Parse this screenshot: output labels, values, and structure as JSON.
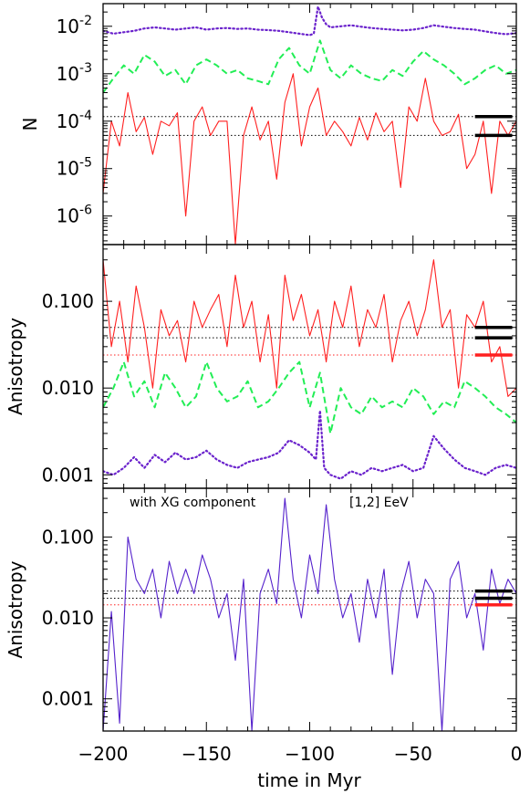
{
  "figure": {
    "xlabel": "time in Myr",
    "x_tick_labels": [
      "−200",
      "−150",
      "−100",
      "−50",
      "0"
    ]
  },
  "chart_data": [
    {
      "type": "line",
      "panel": "top",
      "ylabel": "N",
      "yscale": "log",
      "xlim": [
        -200,
        0
      ],
      "ylim": [
        2.5e-07,
        0.03
      ],
      "y_tick_labels": [
        {
          "mant": "10",
          "exp": "-2"
        },
        {
          "mant": "10",
          "exp": "-3"
        },
        {
          "mant": "10",
          "exp": "-4"
        },
        {
          "mant": "10",
          "exp": "-5"
        },
        {
          "mant": "10",
          "exp": "-6"
        }
      ],
      "series": [
        {
          "color": "#ff2020",
          "style": "solid",
          "x": [
            -200,
            -196,
            -192,
            -188,
            -184,
            -180,
            -176,
            -172,
            -168,
            -164,
            -160,
            -156,
            -152,
            -148,
            -144,
            -140,
            -136,
            -132,
            -128,
            -124,
            -120,
            -116,
            -112,
            -108,
            -104,
            -100,
            -96,
            -92,
            -88,
            -84,
            -80,
            -76,
            -72,
            -68,
            -64,
            -60,
            -56,
            -52,
            -48,
            -44,
            -40,
            -36,
            -32,
            -28,
            -24,
            -20,
            -16,
            -12,
            -8,
            -4,
            0
          ],
          "y": [
            3e-06,
            0.0001,
            3e-05,
            0.0004,
            6e-05,
            0.00012,
            2e-05,
            0.0001,
            8e-05,
            0.00015,
            1e-06,
            0.0001,
            0.0002,
            5e-05,
            0.0001,
            0.0001,
            2.5e-07,
            5e-05,
            0.0002,
            4e-05,
            0.0001,
            6e-06,
            0.00025,
            0.001,
            3e-05,
            0.0002,
            0.0005,
            5e-05,
            0.0001,
            6e-05,
            3e-05,
            0.00012,
            4e-05,
            0.00015,
            6e-05,
            0.0001,
            4e-06,
            0.0002,
            0.0001,
            0.0008,
            0.0001,
            5e-05,
            6e-05,
            0.00014,
            1e-05,
            2e-05,
            0.0001,
            3e-06,
            0.0001,
            5e-05,
            0.0001
          ]
        },
        {
          "color": "#22ee55",
          "style": "dashed",
          "x": [
            -200,
            -195,
            -190,
            -185,
            -180,
            -175,
            -170,
            -165,
            -160,
            -155,
            -150,
            -145,
            -140,
            -135,
            -130,
            -125,
            -120,
            -115,
            -110,
            -105,
            -100,
            -95,
            -90,
            -85,
            -80,
            -75,
            -70,
            -65,
            -60,
            -55,
            -50,
            -45,
            -40,
            -35,
            -30,
            -25,
            -20,
            -15,
            -10,
            -5,
            0
          ],
          "y": [
            0.0004,
            0.0008,
            0.0015,
            0.001,
            0.0025,
            0.0018,
            0.0009,
            0.0012,
            0.0006,
            0.0015,
            0.002,
            0.0015,
            0.001,
            0.0012,
            0.0008,
            0.0007,
            0.0006,
            0.002,
            0.0035,
            0.0015,
            0.001,
            0.005,
            0.0012,
            0.0008,
            0.0015,
            0.001,
            0.0008,
            0.0007,
            0.0012,
            0.0009,
            0.0018,
            0.003,
            0.002,
            0.0015,
            0.001,
            0.0006,
            0.0008,
            0.0012,
            0.0015,
            0.001,
            0.0012
          ]
        },
        {
          "color": "#6a22cc",
          "style": "dotted",
          "x": [
            -200,
            -195,
            -190,
            -185,
            -180,
            -175,
            -170,
            -165,
            -160,
            -155,
            -150,
            -145,
            -140,
            -135,
            -130,
            -125,
            -120,
            -115,
            -110,
            -105,
            -100,
            -98,
            -96,
            -94,
            -92,
            -90,
            -85,
            -80,
            -75,
            -70,
            -65,
            -60,
            -55,
            -50,
            -45,
            -40,
            -35,
            -30,
            -25,
            -20,
            -15,
            -10,
            -5,
            0
          ],
          "y": [
            0.008,
            0.007,
            0.0075,
            0.008,
            0.009,
            0.0095,
            0.009,
            0.0085,
            0.009,
            0.0095,
            0.0085,
            0.009,
            0.0092,
            0.0088,
            0.009,
            0.0085,
            0.0083,
            0.008,
            0.0075,
            0.007,
            0.0065,
            0.007,
            0.026,
            0.015,
            0.011,
            0.0095,
            0.01,
            0.0105,
            0.0098,
            0.0092,
            0.0088,
            0.0085,
            0.0082,
            0.0085,
            0.0092,
            0.0105,
            0.0098,
            0.0092,
            0.0088,
            0.0085,
            0.0078,
            0.0072,
            0.0068,
            0.0072
          ]
        }
      ],
      "hlines": [
        {
          "y": 0.000125,
          "color": "#000000"
        },
        {
          "y": 5e-05,
          "color": "#000000"
        }
      ],
      "markers": [
        {
          "y": 0.000125,
          "color": "#000000"
        },
        {
          "y": 5e-05,
          "color": "#000000"
        }
      ]
    },
    {
      "type": "line",
      "panel": "middle",
      "ylabel": "Anisotropy",
      "yscale": "log",
      "xlim": [
        -200,
        0
      ],
      "ylim": [
        0.0007,
        0.45
      ],
      "y_tick_labels": [
        {
          "value": 0.1,
          "label": "0.100"
        },
        {
          "value": 0.01,
          "label": "0.010"
        },
        {
          "value": 0.001,
          "label": "0.001"
        }
      ],
      "series": [
        {
          "color": "#ff2020",
          "style": "solid",
          "x": [
            -200,
            -196,
            -192,
            -188,
            -184,
            -180,
            -176,
            -172,
            -168,
            -164,
            -160,
            -156,
            -152,
            -148,
            -144,
            -140,
            -136,
            -132,
            -128,
            -124,
            -120,
            -116,
            -112,
            -108,
            -104,
            -100,
            -96,
            -92,
            -88,
            -84,
            -80,
            -76,
            -72,
            -68,
            -64,
            -60,
            -56,
            -52,
            -48,
            -44,
            -40,
            -36,
            -32,
            -28,
            -24,
            -20,
            -16,
            -12,
            -8,
            -4,
            0
          ],
          "y": [
            0.3,
            0.03,
            0.1,
            0.02,
            0.15,
            0.05,
            0.01,
            0.08,
            0.04,
            0.06,
            0.02,
            0.1,
            0.05,
            0.08,
            0.12,
            0.03,
            0.2,
            0.05,
            0.1,
            0.02,
            0.07,
            0.01,
            0.2,
            0.06,
            0.12,
            0.04,
            0.08,
            0.02,
            0.1,
            0.05,
            0.15,
            0.03,
            0.08,
            0.05,
            0.12,
            0.02,
            0.06,
            0.1,
            0.04,
            0.08,
            0.3,
            0.05,
            0.08,
            0.01,
            0.07,
            0.05,
            0.1,
            0.02,
            0.03,
            0.008,
            0.01
          ]
        },
        {
          "color": "#22ee55",
          "style": "dashed",
          "x": [
            -200,
            -195,
            -190,
            -185,
            -180,
            -175,
            -170,
            -165,
            -160,
            -155,
            -150,
            -145,
            -140,
            -135,
            -130,
            -125,
            -120,
            -115,
            -110,
            -105,
            -100,
            -95,
            -90,
            -85,
            -80,
            -75,
            -70,
            -65,
            -60,
            -55,
            -50,
            -45,
            -40,
            -35,
            -30,
            -25,
            -20,
            -15,
            -10,
            -5,
            0
          ],
          "y": [
            0.006,
            0.01,
            0.02,
            0.008,
            0.012,
            0.006,
            0.015,
            0.01,
            0.006,
            0.008,
            0.02,
            0.01,
            0.007,
            0.008,
            0.012,
            0.006,
            0.007,
            0.01,
            0.015,
            0.02,
            0.006,
            0.015,
            0.003,
            0.01,
            0.006,
            0.005,
            0.008,
            0.006,
            0.007,
            0.006,
            0.01,
            0.008,
            0.005,
            0.007,
            0.006,
            0.012,
            0.01,
            0.008,
            0.006,
            0.005,
            0.004
          ]
        },
        {
          "color": "#6a22cc",
          "style": "dotted",
          "x": [
            -200,
            -195,
            -190,
            -185,
            -180,
            -175,
            -170,
            -165,
            -160,
            -155,
            -150,
            -145,
            -140,
            -135,
            -130,
            -125,
            -120,
            -115,
            -110,
            -105,
            -100,
            -97,
            -95,
            -93,
            -90,
            -85,
            -80,
            -75,
            -70,
            -65,
            -60,
            -55,
            -50,
            -45,
            -40,
            -35,
            -30,
            -25,
            -20,
            -15,
            -10,
            -5,
            0
          ],
          "y": [
            0.0011,
            0.001,
            0.0012,
            0.0016,
            0.0012,
            0.0017,
            0.0014,
            0.0018,
            0.0015,
            0.0016,
            0.0019,
            0.0015,
            0.0013,
            0.0012,
            0.0014,
            0.0015,
            0.0016,
            0.0018,
            0.0025,
            0.0022,
            0.0018,
            0.0015,
            0.0055,
            0.0012,
            0.001,
            0.0009,
            0.0011,
            0.001,
            0.0012,
            0.0011,
            0.0012,
            0.0013,
            0.0011,
            0.0012,
            0.0028,
            0.002,
            0.0015,
            0.0012,
            0.0011,
            0.001,
            0.0012,
            0.0013,
            0.0012
          ]
        }
      ],
      "hlines": [
        {
          "y": 0.05,
          "color": "#000000"
        },
        {
          "y": 0.038,
          "color": "#000000"
        },
        {
          "y": 0.024,
          "color": "#ff2020"
        }
      ],
      "markers": [
        {
          "y": 0.05,
          "color": "#000000"
        },
        {
          "y": 0.038,
          "color": "#000000"
        },
        {
          "y": 0.024,
          "color": "#ff2020"
        }
      ]
    },
    {
      "type": "line",
      "panel": "bottom",
      "ylabel": "Anisotropy",
      "yscale": "log",
      "xlim": [
        -200,
        0
      ],
      "ylim": [
        0.0004,
        0.4
      ],
      "annotations": [
        "with XG component",
        "[1,2] EeV"
      ],
      "y_tick_labels": [
        {
          "value": 0.1,
          "label": "0.100"
        },
        {
          "value": 0.01,
          "label": "0.010"
        },
        {
          "value": 0.001,
          "label": "0.001"
        }
      ],
      "series": [
        {
          "color": "#5522cc",
          "style": "solid",
          "x": [
            -200,
            -196,
            -192,
            -188,
            -184,
            -180,
            -176,
            -172,
            -168,
            -164,
            -160,
            -156,
            -152,
            -148,
            -144,
            -140,
            -136,
            -132,
            -128,
            -124,
            -120,
            -116,
            -112,
            -108,
            -104,
            -100,
            -96,
            -92,
            -88,
            -84,
            -80,
            -76,
            -72,
            -68,
            -64,
            -60,
            -56,
            -52,
            -48,
            -44,
            -40,
            -36,
            -32,
            -28,
            -24,
            -20,
            -16,
            -12,
            -8,
            -4,
            0
          ],
          "y": [
            0.0004,
            0.012,
            0.0005,
            0.1,
            0.03,
            0.02,
            0.04,
            0.01,
            0.05,
            0.02,
            0.04,
            0.02,
            0.06,
            0.03,
            0.01,
            0.02,
            0.003,
            0.03,
            0.0004,
            0.02,
            0.04,
            0.015,
            0.3,
            0.03,
            0.01,
            0.06,
            0.02,
            0.25,
            0.03,
            0.01,
            0.02,
            0.005,
            0.03,
            0.01,
            0.04,
            0.002,
            0.02,
            0.05,
            0.01,
            0.03,
            0.02,
            0.0004,
            0.03,
            0.05,
            0.01,
            0.02,
            0.004,
            0.04,
            0.015,
            0.03,
            0.02
          ]
        }
      ],
      "hlines": [
        {
          "y": 0.0215,
          "color": "#000000"
        },
        {
          "y": 0.0175,
          "color": "#000000"
        },
        {
          "y": 0.0145,
          "color": "#ff2020"
        }
      ],
      "markers": [
        {
          "y": 0.0215,
          "color": "#000000"
        },
        {
          "y": 0.0175,
          "color": "#000000"
        },
        {
          "y": 0.0145,
          "color": "#ff2020"
        }
      ]
    }
  ]
}
